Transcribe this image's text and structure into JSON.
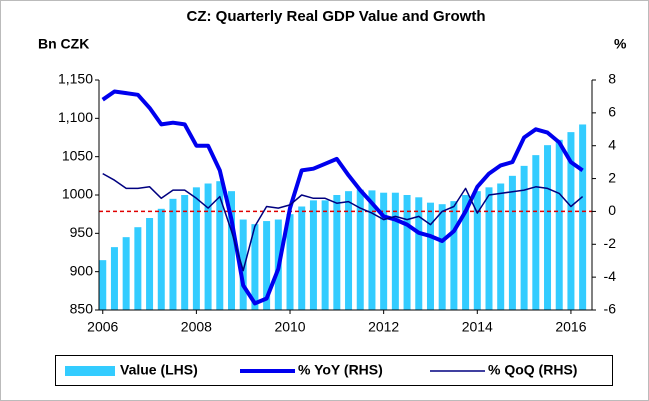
{
  "chart_data": {
    "type": "bar_line",
    "title": "CZ: Quarterly Real GDP Value and Growth",
    "y_label": "Bn CZK",
    "y2_label": "%",
    "x": [
      2006,
      2006.25,
      2006.5,
      2006.75,
      2007,
      2007.25,
      2007.5,
      2007.75,
      2008,
      2008.25,
      2008.5,
      2008.75,
      2009,
      2009.25,
      2009.5,
      2009.75,
      2010,
      2010.25,
      2010.5,
      2010.75,
      2011,
      2011.25,
      2011.5,
      2011.75,
      2012,
      2012.25,
      2012.5,
      2012.75,
      2013,
      2013.25,
      2013.5,
      2013.75,
      2014,
      2014.25,
      2014.5,
      2014.75,
      2015,
      2015.25,
      2015.5,
      2015.75,
      2016,
      2016.25
    ],
    "series": [
      {
        "name": "Value (LHS)",
        "type": "bar",
        "axis": "y",
        "color": "#33ccff",
        "values": [
          915,
          932,
          945,
          958,
          970,
          982,
          995,
          1000,
          1010,
          1015,
          1018,
          1005,
          968,
          962,
          966,
          968,
          975,
          985,
          993,
          993,
          1000,
          1005,
          1007,
          1006,
          1003,
          1003,
          1000,
          997,
          990,
          988,
          992,
          1000,
          1005,
          1010,
          1015,
          1025,
          1038,
          1052,
          1065,
          1072,
          1082,
          1092
        ]
      },
      {
        "name": "% YoY (RHS)",
        "type": "line",
        "axis": "y2",
        "color": "#0000ee",
        "line_width": 4,
        "values": [
          6.8,
          7.3,
          7.2,
          7.1,
          6.3,
          5.3,
          5.4,
          5.3,
          4.0,
          4.0,
          2.5,
          -0.5,
          -4.5,
          -5.6,
          -5.3,
          -3.5,
          0.2,
          2.5,
          2.6,
          2.9,
          3.2,
          2.2,
          1.3,
          0.5,
          -0.3,
          -0.5,
          -0.8,
          -1.3,
          -1.5,
          -1.8,
          -1.2,
          0.0,
          1.5,
          2.3,
          2.8,
          3.0,
          4.5,
          5.0,
          4.8,
          4.2,
          3.0,
          2.5
        ]
      },
      {
        "name": "% QoQ (RHS)",
        "type": "line",
        "axis": "y2",
        "color": "#000080",
        "line_width": 1.5,
        "values": [
          2.3,
          1.9,
          1.4,
          1.4,
          1.5,
          0.8,
          1.3,
          1.3,
          0.8,
          0.2,
          0.9,
          -1.2,
          -3.6,
          -0.9,
          0.3,
          0.2,
          0.4,
          1.0,
          0.8,
          0.8,
          0.5,
          0.6,
          0.2,
          -0.1,
          -0.5,
          -0.3,
          -0.5,
          -0.3,
          -0.8,
          0.0,
          0.3,
          1.4,
          -0.1,
          1.0,
          1.1,
          1.2,
          1.3,
          1.5,
          1.4,
          1.1,
          0.3,
          0.9
        ]
      }
    ],
    "xlim": [
      2005.92,
      2016.45
    ],
    "xticks": [
      2006,
      2008,
      2010,
      2012,
      2014,
      2016
    ],
    "ylim": [
      850,
      1150
    ],
    "yticks": [
      850,
      900,
      950,
      1000,
      1050,
      {
        "value": 1100,
        "label": "1,100"
      },
      {
        "value": 1150,
        "label": "1,150"
      }
    ],
    "y2lim": [
      -6,
      8
    ],
    "y2ticks": [
      -6,
      -4,
      -2,
      0,
      2,
      4,
      6,
      8
    ],
    "zero_line": {
      "value": 0,
      "axis": "y2",
      "color": "#e00000"
    },
    "legend": "bottom"
  }
}
